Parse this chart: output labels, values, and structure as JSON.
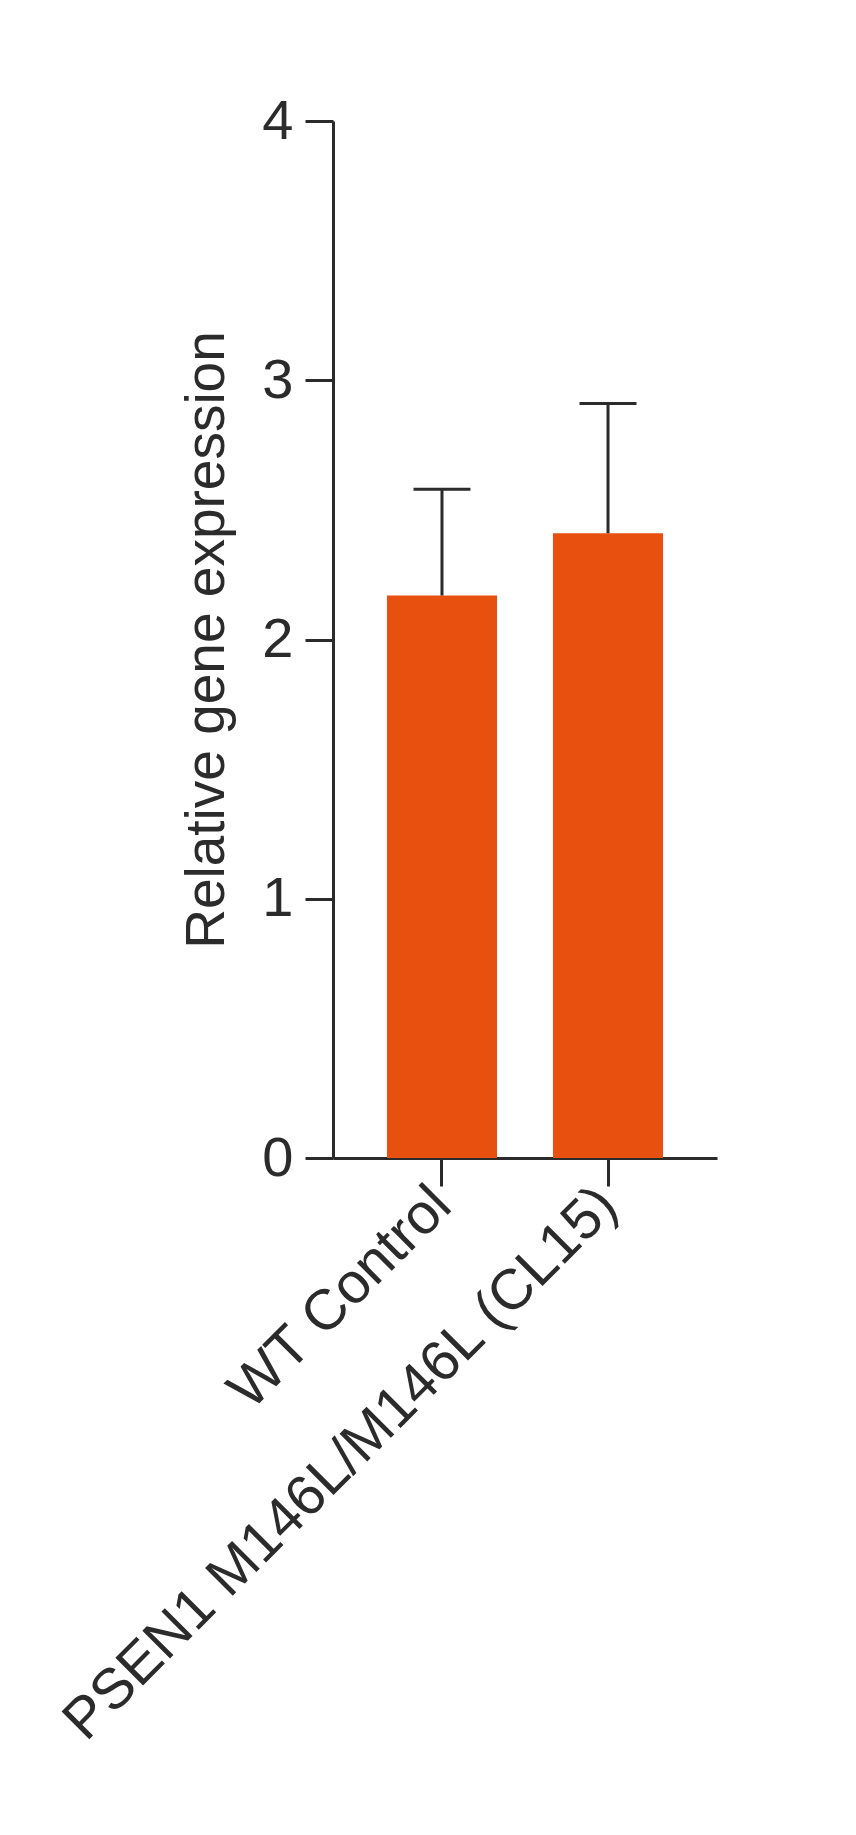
{
  "chart_data": {
    "type": "bar",
    "ylabel": "Relative gene expression",
    "categories": [
      "WT Control",
      "PSEN1 M146L/M146L (CL15)"
    ],
    "values": [
      2.17,
      2.41
    ],
    "errors": [
      [
        2.17,
        2.58
      ],
      [
        2.41,
        2.91
      ]
    ],
    "color": "#e8500f",
    "ylim": [
      0,
      4
    ],
    "yticks": [
      0,
      1,
      2,
      3,
      4
    ],
    "grid": false
  }
}
